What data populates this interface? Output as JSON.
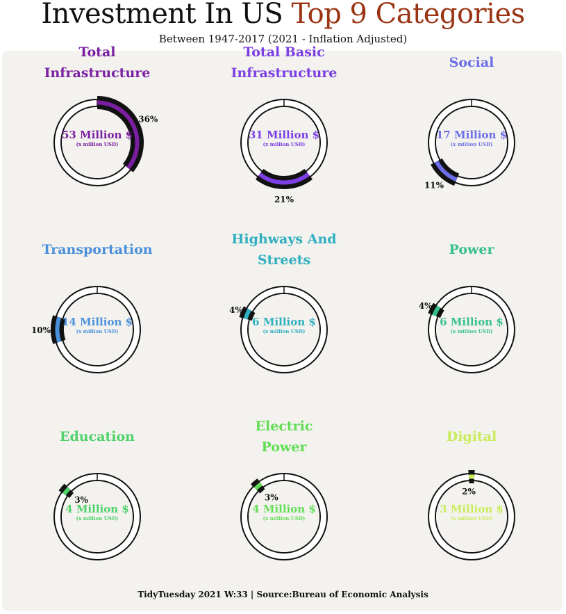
{
  "header": {
    "title_main": "Investment In US ",
    "title_accent": "Top 9 Categories",
    "subtitle": "Between 1947-2017 (2021 - Inflation Adjusted)"
  },
  "footer": {
    "caption": "TidyTuesday 2021 W:33 | Source:Bureau of Economic Analysis"
  },
  "colors": {
    "accent": "#9a3412",
    "panel_bg": "#f3f2ee"
  },
  "chart_data": {
    "type": "donut",
    "unit_note": "(x million USD)",
    "panels": [
      {
        "category": [
          "Total",
          "Infrastructure"
        ],
        "value_label": "53 Million $",
        "percent": 36,
        "percent_label": "36%",
        "color": "#7b1fa2"
      },
      {
        "category": [
          "Total Basic",
          "Infrastructure"
        ],
        "value_label": "31 Million $",
        "percent": 21,
        "percent_label": "21%",
        "color": "#7b3fe4"
      },
      {
        "category": [
          "Social"
        ],
        "value_label": "17 Million $",
        "percent": 11,
        "percent_label": "11%",
        "color": "#6b6ee8"
      },
      {
        "category": [
          "Transportation"
        ],
        "value_label": "14 Million $",
        "percent": 10,
        "percent_label": "10%",
        "color": "#4a8fdb"
      },
      {
        "category": [
          "Highways And",
          "Streets"
        ],
        "value_label": "6 Million $",
        "percent": 4,
        "percent_label": "4%",
        "color": "#2fafc0"
      },
      {
        "category": [
          "Power"
        ],
        "value_label": "6 Million $",
        "percent": 4,
        "percent_label": "4%",
        "color": "#36c08a"
      },
      {
        "category": [
          "Education"
        ],
        "value_label": "4 Million $",
        "percent": 3,
        "percent_label": "3%",
        "color": "#4fd16a"
      },
      {
        "category": [
          "Electric",
          "Power"
        ],
        "value_label": "4 Million $",
        "percent": 3,
        "percent_label": "3%",
        "color": "#63dd55"
      },
      {
        "category": [
          "Digital"
        ],
        "value_label": "3 Million $",
        "percent": 2,
        "percent_label": "2%",
        "color": "#c9ec5a"
      }
    ]
  }
}
